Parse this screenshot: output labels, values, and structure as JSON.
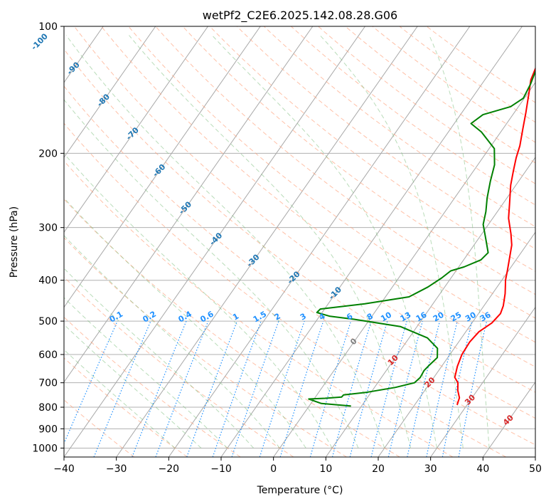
{
  "chart_data": {
    "type": "line",
    "title": "wetPf2_C2E6.2025.142.08.28.G06",
    "xlabel": "Temperature (°C)",
    "ylabel": "Pressure (hPa)",
    "xlim": [
      -40,
      50
    ],
    "ylim": [
      1050,
      100
    ],
    "y_scale": "log",
    "grid": true,
    "x_ticks": [
      -40,
      -30,
      -20,
      -10,
      0,
      10,
      20,
      30,
      40,
      50
    ],
    "y_ticks": [
      100,
      200,
      300,
      400,
      500,
      600,
      700,
      800,
      900,
      1000
    ],
    "series": [
      {
        "color": "#ff0000",
        "points": [
          [
            28.1,
            790
          ],
          [
            27.6,
            760
          ],
          [
            26.3,
            730
          ],
          [
            25.3,
            700
          ],
          [
            24.0,
            680
          ],
          [
            23.0,
            640
          ],
          [
            22.3,
            600
          ],
          [
            22.1,
            560
          ],
          [
            22.5,
            530
          ],
          [
            23.8,
            505
          ],
          [
            24.2,
            480
          ],
          [
            23.7,
            460
          ],
          [
            22.4,
            430
          ],
          [
            21.3,
            410
          ],
          [
            20.7,
            400
          ],
          [
            19.8,
            380
          ],
          [
            18.8,
            360
          ],
          [
            17.2,
            330
          ],
          [
            15.5,
            310
          ],
          [
            13.0,
            285
          ],
          [
            11.4,
            265
          ],
          [
            9.0,
            238
          ],
          [
            7.6,
            220
          ],
          [
            6.4,
            205
          ],
          [
            5.5,
            192
          ],
          [
            3.8,
            175
          ],
          [
            2.2,
            160
          ],
          [
            0.2,
            144
          ],
          [
            -1.2,
            134
          ],
          [
            -2.0,
            124
          ],
          [
            -2.2,
            115
          ],
          [
            -2.4,
            108
          ],
          [
            -2.8,
            100
          ]
        ]
      },
      {
        "color": "#008000",
        "points": [
          [
            8.0,
            795
          ],
          [
            2.0,
            784
          ],
          [
            -1.0,
            765
          ],
          [
            2.0,
            762
          ],
          [
            5.0,
            757
          ],
          [
            5.1,
            748
          ],
          [
            9.0,
            738
          ],
          [
            14.0,
            718
          ],
          [
            17.0,
            700
          ],
          [
            17.4,
            680
          ],
          [
            17.2,
            655
          ],
          [
            17.5,
            635
          ],
          [
            18.0,
            610
          ],
          [
            16.8,
            580
          ],
          [
            13.5,
            548
          ],
          [
            6.8,
            515
          ],
          [
            -3.0,
            495
          ],
          [
            -8.0,
            487
          ],
          [
            -11.0,
            477
          ],
          [
            -10.8,
            468
          ],
          [
            -3.0,
            455
          ],
          [
            4.5,
            438
          ],
          [
            6.8,
            415
          ],
          [
            8.2,
            395
          ],
          [
            9.0,
            380
          ],
          [
            11.0,
            372
          ],
          [
            13.3,
            358
          ],
          [
            13.7,
            344
          ],
          [
            11.5,
            320
          ],
          [
            9.0,
            295
          ],
          [
            7.8,
            275
          ],
          [
            6.2,
            255
          ],
          [
            4.6,
            233
          ],
          [
            3.2,
            213
          ],
          [
            1.0,
            195
          ],
          [
            -3.7,
            178
          ],
          [
            -6.8,
            170
          ],
          [
            -5.7,
            162
          ],
          [
            -1.5,
            155
          ],
          [
            -0.2,
            148
          ],
          [
            -0.7,
            137
          ],
          [
            -1.8,
            124
          ],
          [
            -2.6,
            113
          ],
          [
            -1.3,
            104
          ],
          [
            -0.5,
            100
          ]
        ]
      }
    ],
    "annotations": {
      "dry_adiabat_labels": [
        "-100",
        "-90",
        "-80",
        "-70",
        "-60",
        "-50",
        "-40",
        "-30",
        "-20",
        "-10",
        "0",
        "10",
        "20",
        "30",
        "40"
      ],
      "mixing_ratio_labels": [
        "0.1",
        "0.2",
        "0.4",
        "0.6",
        "1",
        "1.5",
        "2",
        "3",
        "4",
        "6",
        "8",
        "10",
        "13",
        "16",
        "20",
        "25",
        "30",
        "36"
      ]
    }
  }
}
